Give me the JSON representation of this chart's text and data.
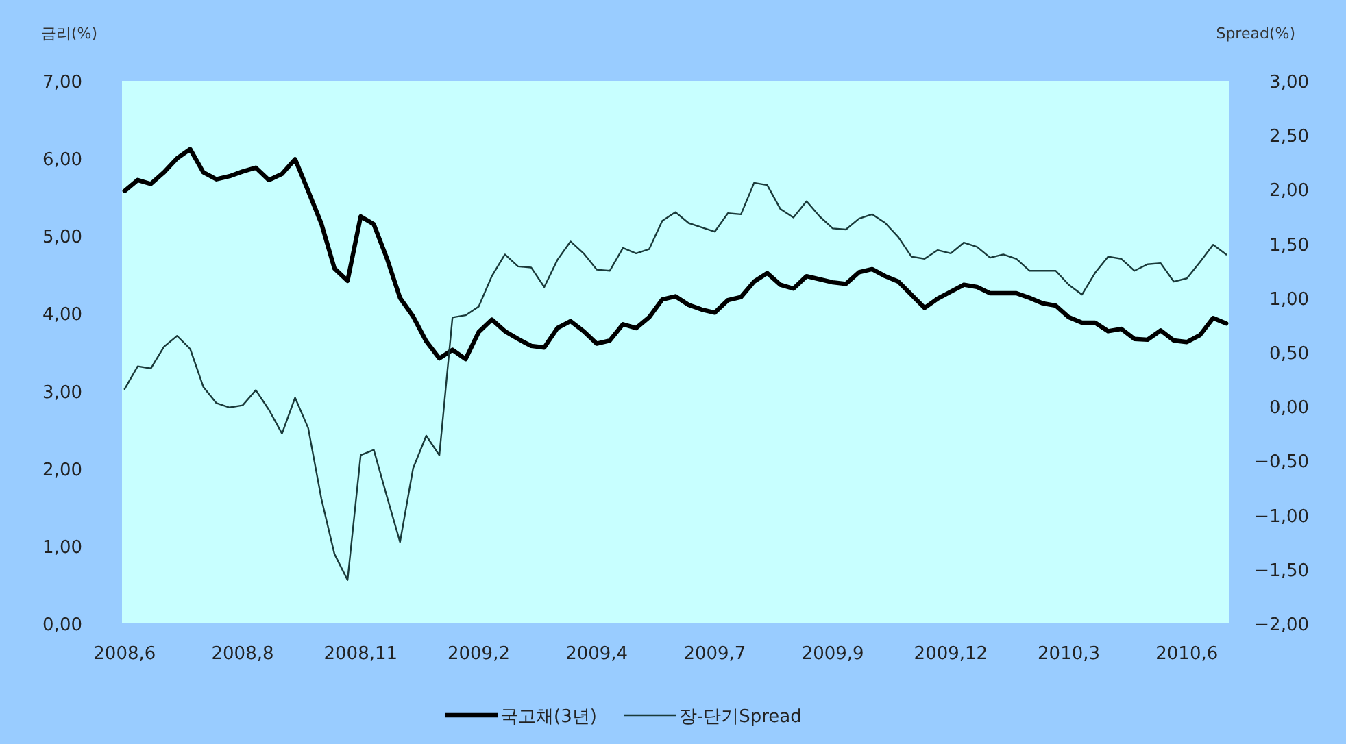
{
  "chart_data": {
    "type": "line",
    "ylabel": "금리(%)",
    "y2label": "Spread(%)",
    "categories": [
      "2008,6",
      null,
      null,
      null,
      null,
      null,
      null,
      null,
      null,
      "2008,8",
      null,
      null,
      null,
      null,
      null,
      null,
      null,
      null,
      "2008,11",
      null,
      null,
      null,
      null,
      null,
      null,
      null,
      null,
      "2009,2",
      null,
      null,
      null,
      null,
      null,
      null,
      null,
      null,
      "2009,4",
      null,
      null,
      null,
      null,
      null,
      null,
      null,
      null,
      "2009,7",
      null,
      null,
      null,
      null,
      null,
      null,
      null,
      null,
      "2009,9",
      null,
      null,
      null,
      null,
      null,
      null,
      null,
      null,
      "2009,12",
      null,
      null,
      null,
      null,
      null,
      null,
      null,
      null,
      "2010,3",
      null,
      null,
      null,
      null,
      null,
      null,
      null,
      null,
      "2010,6",
      null,
      null,
      null
    ],
    "ylim": [
      0,
      7
    ],
    "yticks": [
      {
        "value": 0,
        "label": "0,00"
      },
      {
        "value": 1,
        "label": "1,00"
      },
      {
        "value": 2,
        "label": "2,00"
      },
      {
        "value": 3,
        "label": "3,00"
      },
      {
        "value": 4,
        "label": "4,00"
      },
      {
        "value": 5,
        "label": "5,00"
      },
      {
        "value": 6,
        "label": "6,00"
      },
      {
        "value": 7,
        "label": "7,00"
      }
    ],
    "y2lim": [
      -2,
      3
    ],
    "y2ticks": [
      {
        "value": -2,
        "label": "−2,00"
      },
      {
        "value": -1.5,
        "label": "−1,50"
      },
      {
        "value": -1,
        "label": "−1,00"
      },
      {
        "value": -0.5,
        "label": "−0,50"
      },
      {
        "value": 0,
        "label": "0,00"
      },
      {
        "value": 0.5,
        "label": "0,50"
      },
      {
        "value": 1,
        "label": "1,00"
      },
      {
        "value": 1.5,
        "label": "1,50"
      },
      {
        "value": 2,
        "label": "2,00"
      },
      {
        "value": 2.5,
        "label": "2,50"
      },
      {
        "value": 3,
        "label": "3,00"
      }
    ],
    "grid": false,
    "legend": "bottom",
    "marker": "none",
    "line_style": "solid",
    "series": [
      {
        "name": "국고채(3년)",
        "color": "#000000",
        "values": [
          5.58,
          5.72,
          5.67,
          5.82,
          6.0,
          6.12,
          5.82,
          5.73,
          5.77,
          5.83,
          5.88,
          5.72,
          5.8,
          5.99,
          5.58,
          5.16,
          4.58,
          4.42,
          5.25,
          5.15,
          4.71,
          4.2,
          3.96,
          3.64,
          3.42,
          3.53,
          3.41,
          3.76,
          3.92,
          3.77,
          3.67,
          3.58,
          3.56,
          3.81,
          3.9,
          3.77,
          3.61,
          3.65,
          3.86,
          3.81,
          3.95,
          4.18,
          4.22,
          4.11,
          4.05,
          4.01,
          4.17,
          4.21,
          4.41,
          4.52,
          4.37,
          4.32,
          4.48,
          4.44,
          4.4,
          4.38,
          4.53,
          4.57,
          4.48,
          4.41,
          4.24,
          4.07,
          4.19,
          4.28,
          4.37,
          4.34,
          4.26,
          4.26,
          4.26,
          4.2,
          4.13,
          4.1,
          3.95,
          3.88,
          3.88,
          3.77,
          3.8,
          3.67,
          3.66,
          3.78,
          3.65,
          3.63,
          3.72,
          3.94,
          3.87
        ]
      },
      {
        "name": "장-단기Spread",
        "color": "#1a3a3a",
        "axis": "y2",
        "values": [
          0.16,
          0.37,
          0.35,
          0.55,
          0.65,
          0.53,
          0.18,
          0.03,
          -0.01,
          0.01,
          0.15,
          -0.03,
          -0.25,
          0.08,
          -0.2,
          -0.85,
          -1.36,
          -1.6,
          -0.45,
          -0.4,
          -0.83,
          -1.25,
          -0.57,
          -0.27,
          -0.45,
          0.82,
          0.84,
          0.92,
          1.2,
          1.4,
          1.29,
          1.28,
          1.1,
          1.35,
          1.52,
          1.41,
          1.26,
          1.25,
          1.46,
          1.41,
          1.45,
          1.71,
          1.79,
          1.69,
          1.65,
          1.61,
          1.78,
          1.77,
          2.06,
          2.04,
          1.82,
          1.74,
          1.89,
          1.75,
          1.64,
          1.63,
          1.73,
          1.77,
          1.69,
          1.56,
          1.38,
          1.36,
          1.44,
          1.41,
          1.51,
          1.47,
          1.37,
          1.4,
          1.36,
          1.25,
          1.25,
          1.25,
          1.12,
          1.03,
          1.23,
          1.38,
          1.36,
          1.25,
          1.31,
          1.32,
          1.15,
          1.18,
          1.33,
          1.49,
          1.4
        ]
      }
    ]
  }
}
